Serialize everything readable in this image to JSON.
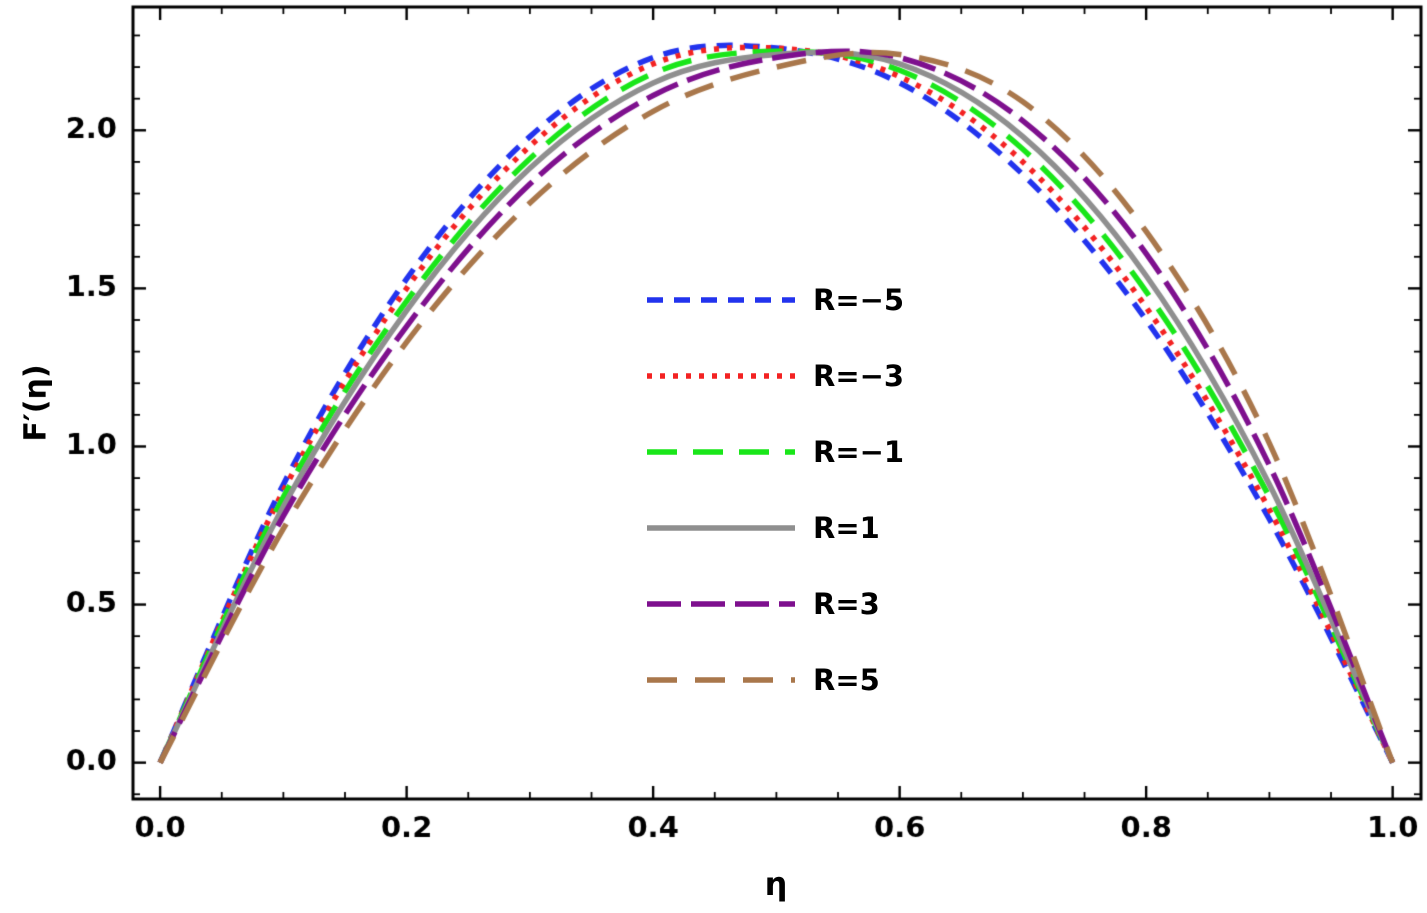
{
  "chart_data": {
    "type": "line",
    "title": "",
    "xlabel": "η",
    "ylabel": "F′(η)",
    "xlim": [
      -0.022,
      1.023
    ],
    "ylim": [
      -0.115,
      2.39
    ],
    "grid": false,
    "frame": true,
    "frame_color": "#000000",
    "legend_position": "inside-center-right",
    "xtick_values": [
      0,
      0.2,
      0.4,
      0.6,
      0.8,
      1.0
    ],
    "xtick_labels": [
      "0.0",
      "0.2",
      "0.4",
      "0.6",
      "0.8",
      "1.0"
    ],
    "ytick_values": [
      0,
      0.5,
      1.0,
      1.5,
      2.0
    ],
    "ytick_labels": [
      "0.0",
      "0.5",
      "1.0",
      "1.5",
      "2.0"
    ],
    "x_minor_step": 0.05,
    "y_minor_step": 0.1,
    "x": [
      0,
      0.1,
      0.2,
      0.3,
      0.4,
      0.5,
      0.6,
      0.7,
      0.8,
      0.9,
      1.0
    ],
    "series": [
      {
        "label": "R=−5",
        "color": "#2233ee",
        "dash": [
          16,
          11
        ],
        "width": 5.5,
        "values": [
          0,
          0.88,
          1.53,
          1.98,
          2.23,
          2.26,
          2.15,
          1.86,
          1.4,
          0.77,
          0
        ]
      },
      {
        "label": "R=−3",
        "color": "#f32222",
        "dash": [
          5,
          8
        ],
        "width": 5.5,
        "values": [
          0,
          0.86,
          1.5,
          1.95,
          2.21,
          2.26,
          2.17,
          1.9,
          1.44,
          0.8,
          0
        ]
      },
      {
        "label": "R=−1",
        "color": "#19e619",
        "dash": [
          30,
          16
        ],
        "width": 5.5,
        "values": [
          0,
          0.84,
          1.46,
          1.91,
          2.18,
          2.25,
          2.19,
          1.94,
          1.49,
          0.84,
          0
        ]
      },
      {
        "label": "R=1",
        "color": "#8f8f8f",
        "dash": [],
        "width": 5.5,
        "values": [
          0,
          0.81,
          1.43,
          1.88,
          2.15,
          2.24,
          2.21,
          1.98,
          1.54,
          0.88,
          0
        ]
      },
      {
        "label": "R=3",
        "color": "#7e108e",
        "dash": [
          34,
          10
        ],
        "width": 5.5,
        "values": [
          0,
          0.78,
          1.38,
          1.83,
          2.11,
          2.23,
          2.23,
          2.03,
          1.61,
          0.94,
          0
        ]
      },
      {
        "label": "R=5",
        "color": "#a9774b",
        "dash": [
          30,
          18
        ],
        "width": 5.5,
        "values": [
          0,
          0.74,
          1.33,
          1.77,
          2.06,
          2.2,
          2.24,
          2.09,
          1.68,
          1.01,
          0
        ]
      }
    ]
  }
}
